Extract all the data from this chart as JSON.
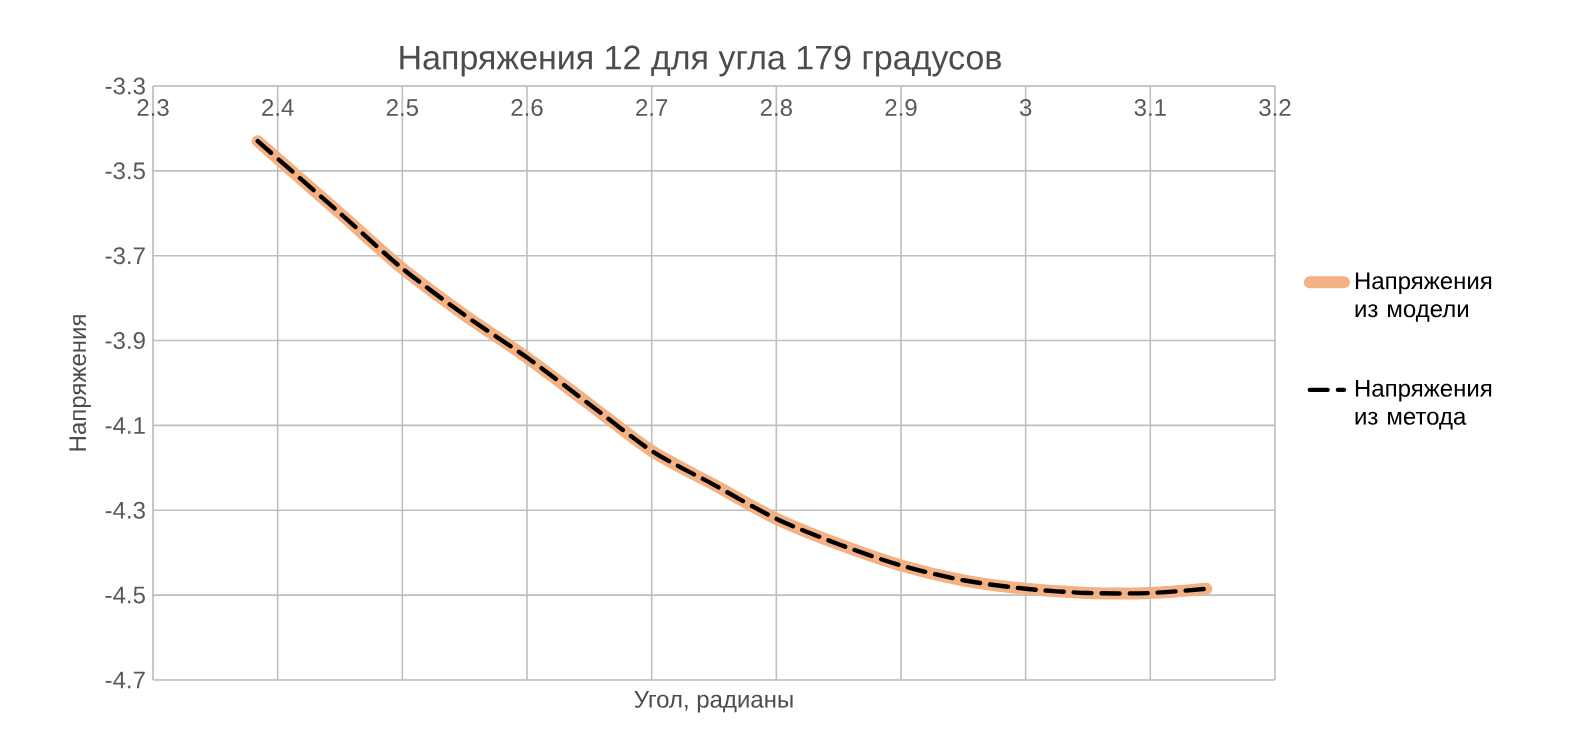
{
  "chart_data": {
    "type": "line",
    "title": "Напряжения 12 для угла 179 градусов",
    "xlabel": "Угол, радианы",
    "ylabel": "Напряжения",
    "xlim": [
      2.3,
      3.2
    ],
    "xticks": [
      2.3,
      2.4,
      2.5,
      2.6,
      2.7,
      2.8,
      2.9,
      3,
      3.1,
      3.2
    ],
    "ylim": [
      -4.7,
      -3.3
    ],
    "yticks": [
      -4.7,
      -4.5,
      -4.3,
      -4.1,
      -3.9,
      -3.7,
      -3.5,
      -3.3
    ],
    "grid": true,
    "legend": "right",
    "marker": "none",
    "x": [
      2.384,
      2.45,
      2.5,
      2.55,
      2.6,
      2.65,
      2.7,
      2.75,
      2.8,
      2.85,
      2.9,
      2.95,
      3.0,
      3.05,
      3.1,
      3.145
    ],
    "series": [
      {
        "name": "Напряжения из модели",
        "color": "#f4b183",
        "line_style": "solid",
        "values": [
          -3.43,
          -3.6,
          -3.73,
          -3.84,
          -3.94,
          -4.05,
          -4.16,
          -4.24,
          -4.32,
          -4.38,
          -4.43,
          -4.465,
          -4.485,
          -4.495,
          -4.495,
          -4.485
        ]
      },
      {
        "name": "Напряжения из метода",
        "color": "#000000",
        "line_style": "dashed",
        "values": [
          -3.43,
          -3.6,
          -3.73,
          -3.84,
          -3.94,
          -4.05,
          -4.16,
          -4.24,
          -4.32,
          -4.38,
          -4.43,
          -4.465,
          -4.485,
          -4.495,
          -4.495,
          -4.485
        ]
      }
    ]
  }
}
